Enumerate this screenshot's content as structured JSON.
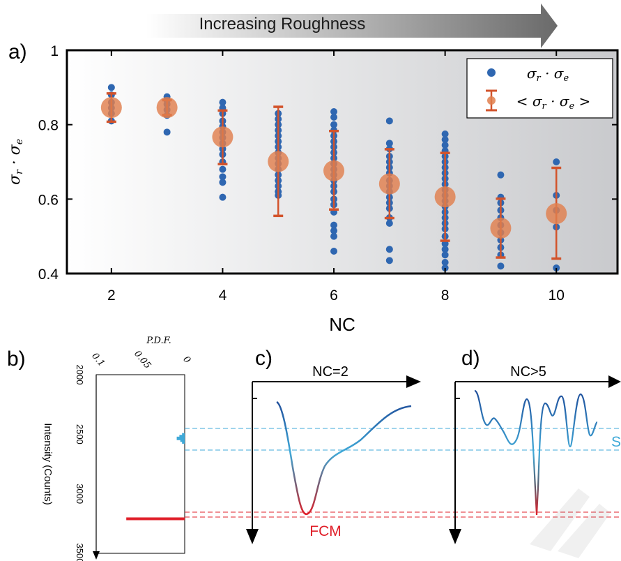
{
  "banner": {
    "label": "Increasing Roughness"
  },
  "panel_labels": {
    "a": "a)",
    "b": "b)",
    "c": "c)",
    "d": "d)"
  },
  "colors": {
    "points": "#2f67b1",
    "means": "#e07f4e",
    "errorbars": "#d2532b",
    "fcm": "#e0202a",
    "secondary": "#3fa9d8",
    "curve_dark": "#1f4e9b"
  },
  "chart_data": [
    {
      "id": "a",
      "type": "scatter",
      "xlabel": "NC",
      "ylabel": "σ_r · σ_e",
      "xlim": [
        1.2,
        11.1
      ],
      "ylim": [
        0.4,
        1.0
      ],
      "xticks": [
        "2",
        "4",
        "6",
        "8",
        "10"
      ],
      "xtick_values": [
        2,
        4,
        6,
        8,
        10
      ],
      "yticks": [
        "0.4",
        "0.6",
        "0.8",
        "1"
      ],
      "ytick_values": [
        0.4,
        0.6,
        0.8,
        1.0
      ],
      "legend": {
        "placement": "top-right",
        "entries": [
          "σr · σe",
          "< σr · σe >"
        ]
      },
      "series": [
        {
          "name": "σr · σe",
          "points": [
            [
              2,
              0.9
            ],
            [
              2,
              0.88
            ],
            [
              2,
              0.86
            ],
            [
              2,
              0.845
            ],
            [
              2,
              0.83
            ],
            [
              2,
              0.81
            ],
            [
              3,
              0.875
            ],
            [
              3,
              0.865
            ],
            [
              3,
              0.855
            ],
            [
              3,
              0.84
            ],
            [
              3,
              0.825
            ],
            [
              3,
              0.78
            ],
            [
              4,
              0.86
            ],
            [
              4,
              0.845
            ],
            [
              4,
              0.83
            ],
            [
              4,
              0.81
            ],
            [
              4,
              0.795
            ],
            [
              4,
              0.78
            ],
            [
              4,
              0.765
            ],
            [
              4,
              0.75
            ],
            [
              4,
              0.735
            ],
            [
              4,
              0.72
            ],
            [
              4,
              0.7
            ],
            [
              4,
              0.68
            ],
            [
              4,
              0.66
            ],
            [
              4,
              0.645
            ],
            [
              4,
              0.605
            ],
            [
              5,
              0.83
            ],
            [
              5,
              0.815
            ],
            [
              5,
              0.8
            ],
            [
              5,
              0.785
            ],
            [
              5,
              0.77
            ],
            [
              5,
              0.755
            ],
            [
              5,
              0.74
            ],
            [
              5,
              0.725
            ],
            [
              5,
              0.71
            ],
            [
              5,
              0.695
            ],
            [
              5,
              0.68
            ],
            [
              5,
              0.665
            ],
            [
              5,
              0.65
            ],
            [
              5,
              0.635
            ],
            [
              5,
              0.62
            ],
            [
              5,
              0.61
            ],
            [
              6,
              0.835
            ],
            [
              6,
              0.82
            ],
            [
              6,
              0.8
            ],
            [
              6,
              0.785
            ],
            [
              6,
              0.77
            ],
            [
              6,
              0.755
            ],
            [
              6,
              0.74
            ],
            [
              6,
              0.725
            ],
            [
              6,
              0.71
            ],
            [
              6,
              0.695
            ],
            [
              6,
              0.68
            ],
            [
              6,
              0.665
            ],
            [
              6,
              0.65
            ],
            [
              6,
              0.635
            ],
            [
              6,
              0.62
            ],
            [
              6,
              0.6
            ],
            [
              6,
              0.585
            ],
            [
              6,
              0.565
            ],
            [
              6,
              0.53
            ],
            [
              6,
              0.515
            ],
            [
              6,
              0.5
            ],
            [
              6,
              0.46
            ],
            [
              7,
              0.81
            ],
            [
              7,
              0.75
            ],
            [
              7,
              0.735
            ],
            [
              7,
              0.715
            ],
            [
              7,
              0.7
            ],
            [
              7,
              0.685
            ],
            [
              7,
              0.67
            ],
            [
              7,
              0.65
            ],
            [
              7,
              0.635
            ],
            [
              7,
              0.62
            ],
            [
              7,
              0.605
            ],
            [
              7,
              0.59
            ],
            [
              7,
              0.575
            ],
            [
              7,
              0.55
            ],
            [
              7,
              0.535
            ],
            [
              7,
              0.465
            ],
            [
              7,
              0.435
            ],
            [
              8,
              0.775
            ],
            [
              8,
              0.76
            ],
            [
              8,
              0.745
            ],
            [
              8,
              0.73
            ],
            [
              8,
              0.715
            ],
            [
              8,
              0.7
            ],
            [
              8,
              0.685
            ],
            [
              8,
              0.67
            ],
            [
              8,
              0.655
            ],
            [
              8,
              0.64
            ],
            [
              8,
              0.625
            ],
            [
              8,
              0.61
            ],
            [
              8,
              0.595
            ],
            [
              8,
              0.58
            ],
            [
              8,
              0.565
            ],
            [
              8,
              0.55
            ],
            [
              8,
              0.535
            ],
            [
              8,
              0.52
            ],
            [
              8,
              0.5
            ],
            [
              8,
              0.48
            ],
            [
              8,
              0.465
            ],
            [
              8,
              0.45
            ],
            [
              8,
              0.43
            ],
            [
              8,
              0.415
            ],
            [
              9,
              0.665
            ],
            [
              9,
              0.605
            ],
            [
              9,
              0.59
            ],
            [
              9,
              0.57
            ],
            [
              9,
              0.55
            ],
            [
              9,
              0.53
            ],
            [
              9,
              0.51
            ],
            [
              9,
              0.49
            ],
            [
              9,
              0.47
            ],
            [
              9,
              0.45
            ],
            [
              9,
              0.42
            ],
            [
              10,
              0.7
            ],
            [
              10,
              0.61
            ],
            [
              10,
              0.57
            ],
            [
              10,
              0.525
            ],
            [
              10,
              0.415
            ]
          ]
        },
        {
          "name": "< σr · σe >",
          "x": [
            2,
            3,
            4,
            5,
            6,
            7,
            8,
            9,
            10
          ],
          "mean": [
            0.846,
            0.846,
            0.767,
            0.701,
            0.676,
            0.641,
            0.606,
            0.522,
            0.561
          ],
          "err_low": [
            0.808,
            0.826,
            0.694,
            0.555,
            0.572,
            0.549,
            0.488,
            0.443,
            0.44
          ],
          "err_high": [
            0.884,
            0.866,
            0.838,
            0.848,
            0.783,
            0.734,
            0.724,
            0.601,
            0.684
          ]
        }
      ]
    },
    {
      "id": "b",
      "type": "bar",
      "orientation": "horizontal",
      "top_label": "P.D.F.",
      "ylabel": "Intensity (Counts)",
      "xticks": [
        "0.1",
        "0.05",
        "0"
      ],
      "yticks": [
        "2000",
        "2500",
        "3000",
        "3500"
      ],
      "ylim": [
        2000,
        3500
      ],
      "xlim": [
        0.1,
        0
      ],
      "bars": [
        {
          "intensity": 3210,
          "pdf": 0.066,
          "color": "#e0202a"
        },
        {
          "intensity": 2505,
          "pdf": 0.003,
          "color": "#3fa9d8"
        },
        {
          "intensity": 2520,
          "pdf": 0.006,
          "color": "#3fa9d8"
        },
        {
          "intensity": 2535,
          "pdf": 0.009,
          "color": "#3fa9d8"
        },
        {
          "intensity": 2550,
          "pdf": 0.005,
          "color": "#3fa9d8"
        },
        {
          "intensity": 2565,
          "pdf": 0.003,
          "color": "#3fa9d8"
        }
      ]
    },
    {
      "id": "c",
      "type": "line",
      "title": "NC=2",
      "annotation": "FCM"
    },
    {
      "id": "d",
      "type": "line",
      "title": "NC>5",
      "annotation": "S"
    }
  ]
}
